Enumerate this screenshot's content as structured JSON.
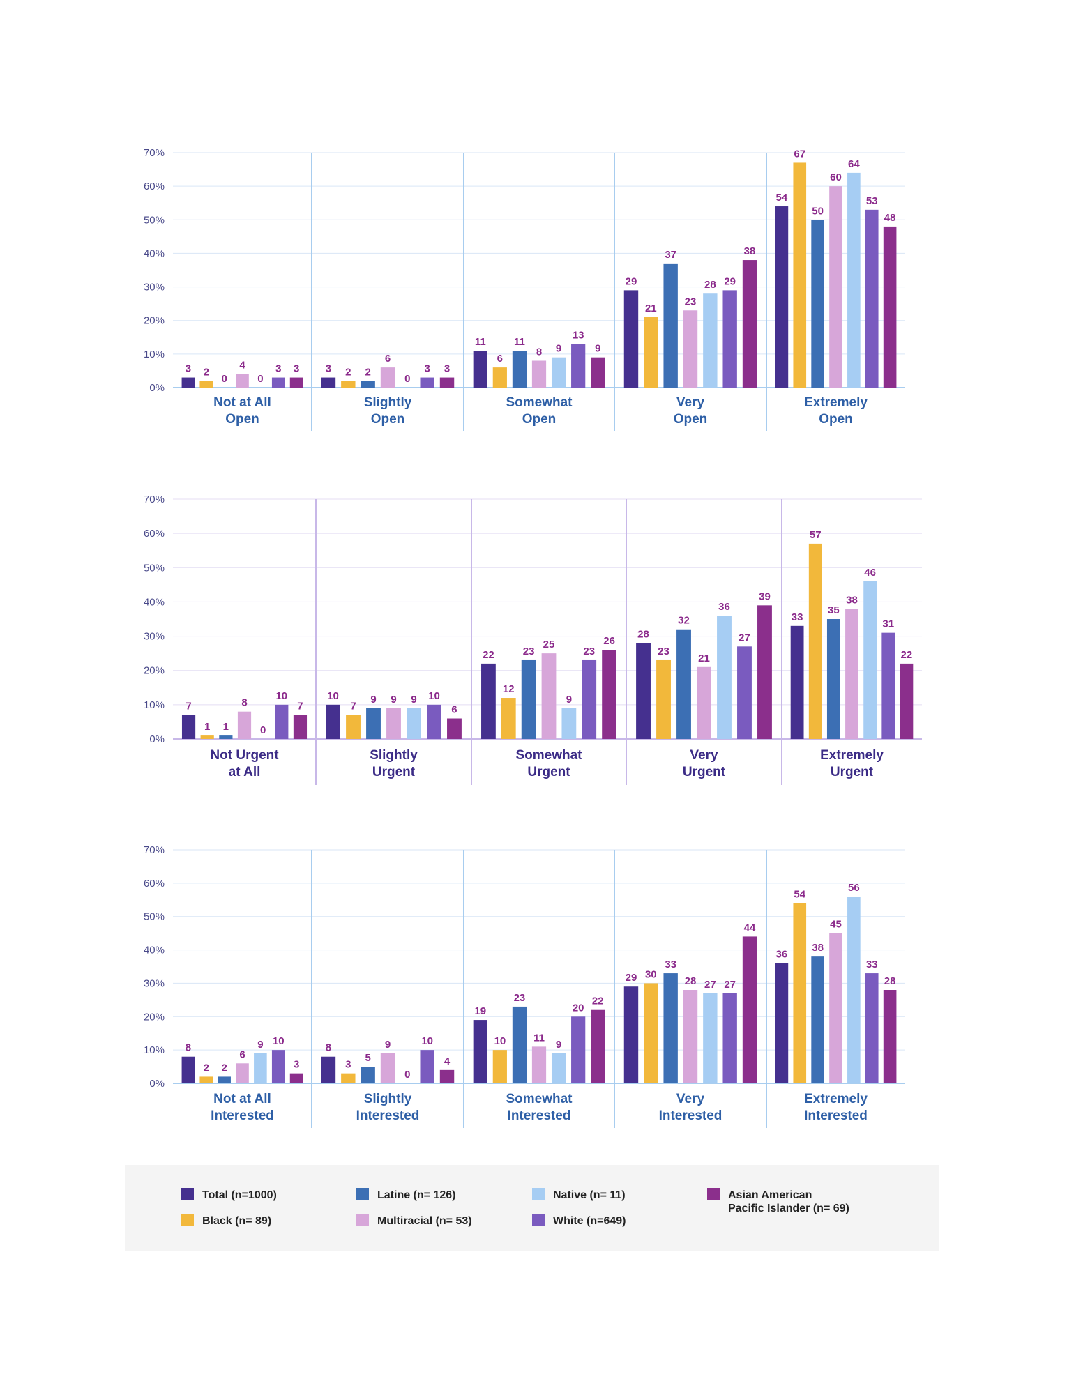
{
  "colors": {
    "total": "#45308f",
    "black": "#f2b83b",
    "latine": "#3c6fb4",
    "multiracial": "#d7a6d9",
    "native": "#a6cdf3",
    "white": "#7a5bbf",
    "aapi": "#8b2f8c",
    "label": "#8b2a8b",
    "tick": "#4a4a8a",
    "cat_blue": "#2e5fa6",
    "cat_purple": "#3b2b86"
  },
  "legend": {
    "items": [
      {
        "key": "total",
        "label": "Total (n=1000)"
      },
      {
        "key": "black",
        "label": "Black (n= 89)"
      },
      {
        "key": "latine",
        "label": "Latine (n= 126)"
      },
      {
        "key": "multiracial",
        "label": "Multiracial (n= 53)"
      },
      {
        "key": "native",
        "label": "Native (n= 11)"
      },
      {
        "key": "white",
        "label": "White (n=649)"
      },
      {
        "key": "aapi",
        "label": "Asian American",
        "label2": "Pacific Islander (n= 69)"
      }
    ]
  },
  "chart_data": [
    {
      "type": "bar",
      "categories": [
        [
          "Not at All",
          "Open"
        ],
        [
          "Slightly",
          "Open"
        ],
        [
          "Somewhat",
          "Open"
        ],
        [
          "Very",
          "Open"
        ],
        [
          "Extremely",
          "Open"
        ]
      ],
      "series_keys": [
        "total",
        "black",
        "latine",
        "multiracial",
        "native",
        "white",
        "aapi"
      ],
      "values": [
        [
          3,
          2,
          0,
          4,
          0,
          3,
          3
        ],
        [
          3,
          2,
          2,
          6,
          0,
          3,
          3
        ],
        [
          11,
          6,
          11,
          8,
          9,
          13,
          9
        ],
        [
          29,
          21,
          37,
          23,
          28,
          29,
          38
        ],
        [
          54,
          67,
          50,
          60,
          64,
          53,
          48
        ]
      ],
      "ylim": [
        0,
        70
      ],
      "yticks": [
        "0%",
        "10%",
        "20%",
        "30%",
        "40%",
        "50%",
        "60%",
        "70%"
      ],
      "grid": true
    },
    {
      "type": "bar",
      "categories": [
        [
          "Not Urgent",
          "at All"
        ],
        [
          "Slightly",
          "Urgent"
        ],
        [
          "Somewhat",
          "Urgent"
        ],
        [
          "Very",
          "Urgent"
        ],
        [
          "Extremely",
          "Urgent"
        ]
      ],
      "series_keys": [
        "total",
        "black",
        "latine",
        "multiracial",
        "native",
        "white",
        "aapi"
      ],
      "values": [
        [
          7,
          1,
          1,
          8,
          0,
          10,
          7
        ],
        [
          10,
          7,
          9,
          9,
          9,
          10,
          6
        ],
        [
          22,
          12,
          23,
          25,
          9,
          23,
          26
        ],
        [
          28,
          23,
          32,
          21,
          36,
          27,
          39
        ],
        [
          33,
          57,
          35,
          38,
          46,
          31,
          22
        ]
      ],
      "ylim": [
        0,
        70
      ],
      "yticks": [
        "0%",
        "10%",
        "20%",
        "30%",
        "40%",
        "50%",
        "60%",
        "70%"
      ],
      "grid": true
    },
    {
      "type": "bar",
      "categories": [
        [
          "Not at All",
          "Interested"
        ],
        [
          "Slightly",
          "Interested"
        ],
        [
          "Somewhat",
          "Interested"
        ],
        [
          "Very",
          "Interested"
        ],
        [
          "Extremely",
          "Interested"
        ]
      ],
      "series_keys": [
        "total",
        "black",
        "latine",
        "multiracial",
        "native",
        "white",
        "aapi"
      ],
      "values": [
        [
          8,
          2,
          2,
          6,
          9,
          10,
          3
        ],
        [
          8,
          3,
          5,
          9,
          0,
          10,
          4
        ],
        [
          19,
          10,
          23,
          11,
          9,
          20,
          22
        ],
        [
          29,
          30,
          33,
          28,
          27,
          27,
          44
        ],
        [
          36,
          54,
          38,
          45,
          56,
          33,
          28
        ]
      ],
      "ylim": [
        0,
        70
      ],
      "yticks": [
        "0%",
        "10%",
        "20%",
        "30%",
        "40%",
        "50%",
        "60%",
        "70%"
      ],
      "grid": true
    }
  ]
}
